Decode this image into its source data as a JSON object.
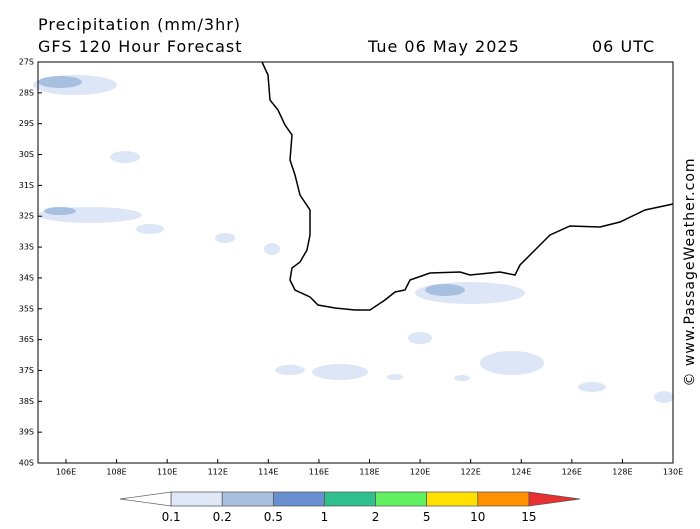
{
  "header": {
    "title": "Precipitation (mm/3hr)",
    "model": "GFS 120 Hour Forecast",
    "date": "Tue 06 May 2025",
    "time": "06 UTC"
  },
  "map": {
    "lat_labels": [
      "27S",
      "28S",
      "29S",
      "30S",
      "31S",
      "32S",
      "33S",
      "34S",
      "35S",
      "36S",
      "37S",
      "38S",
      "39S",
      "40S"
    ],
    "lon_labels": [
      "106E",
      "108E",
      "110E",
      "112E",
      "114E",
      "116E",
      "118E",
      "120E",
      "122E",
      "124E",
      "126E",
      "128E",
      "130E"
    ]
  },
  "colorbar": {
    "labels": [
      0.1,
      0.2,
      0.5,
      1,
      2,
      5,
      10,
      15
    ],
    "colors": [
      "#ffffff",
      "#e0e8f8",
      "#a8c0e0",
      "#6890d0",
      "#30c090",
      "#60f060",
      "#ffe000",
      "#ff9000",
      "#e83030"
    ]
  },
  "credit": "© www.PassageWeather.com"
}
